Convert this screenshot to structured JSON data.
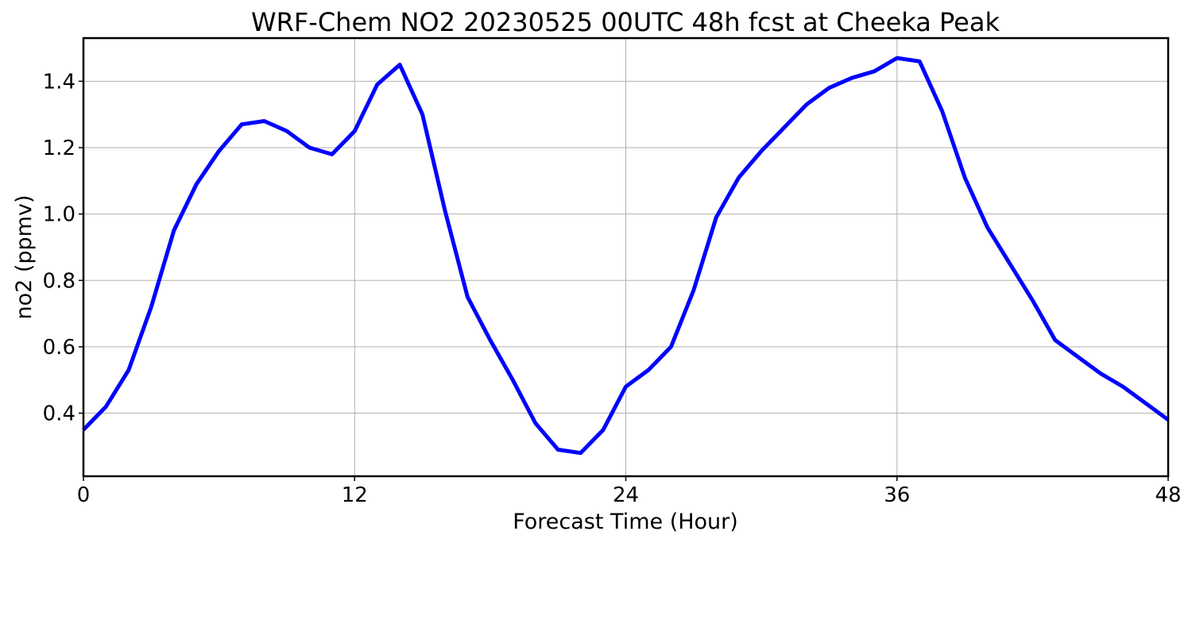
{
  "chart_data": {
    "type": "line",
    "title": "WRF-Chem NO2  20230525 00UTC 48h fcst at Cheeka Peak",
    "xlabel": "Forecast Time (Hour)",
    "ylabel": "no2  (ppmv)",
    "xlim": [
      0,
      48
    ],
    "ylim": [
      0.21,
      1.53
    ],
    "xticks": [
      0,
      12,
      24,
      36,
      48
    ],
    "xtick_labels": [
      "0",
      "12",
      "24",
      "36",
      "48"
    ],
    "yticks": [
      0.4,
      0.6,
      0.8,
      1.0,
      1.2,
      1.4
    ],
    "ytick_labels": [
      "0.4",
      "0.6",
      "0.8",
      "1.0",
      "1.2",
      "1.4"
    ],
    "grid": true,
    "line_color": "#0000ff",
    "x": [
      0,
      1,
      2,
      3,
      4,
      5,
      6,
      7,
      8,
      9,
      10,
      11,
      12,
      13,
      14,
      15,
      16,
      17,
      18,
      19,
      20,
      21,
      22,
      23,
      24,
      25,
      26,
      27,
      28,
      29,
      30,
      31,
      32,
      33,
      34,
      35,
      36,
      37,
      38,
      39,
      40,
      41,
      42,
      43,
      44,
      45,
      46,
      47,
      48
    ],
    "y": [
      0.35,
      0.42,
      0.53,
      0.72,
      0.95,
      1.09,
      1.19,
      1.27,
      1.28,
      1.25,
      1.2,
      1.18,
      1.25,
      1.39,
      1.45,
      1.3,
      1.01,
      0.75,
      0.62,
      0.5,
      0.37,
      0.29,
      0.28,
      0.35,
      0.48,
      0.53,
      0.6,
      0.77,
      0.99,
      1.11,
      1.19,
      1.26,
      1.33,
      1.38,
      1.41,
      1.43,
      1.47,
      1.46,
      1.31,
      1.11,
      0.96,
      0.85,
      0.74,
      0.62,
      0.57,
      0.52,
      0.48,
      0.43,
      0.38
    ]
  }
}
